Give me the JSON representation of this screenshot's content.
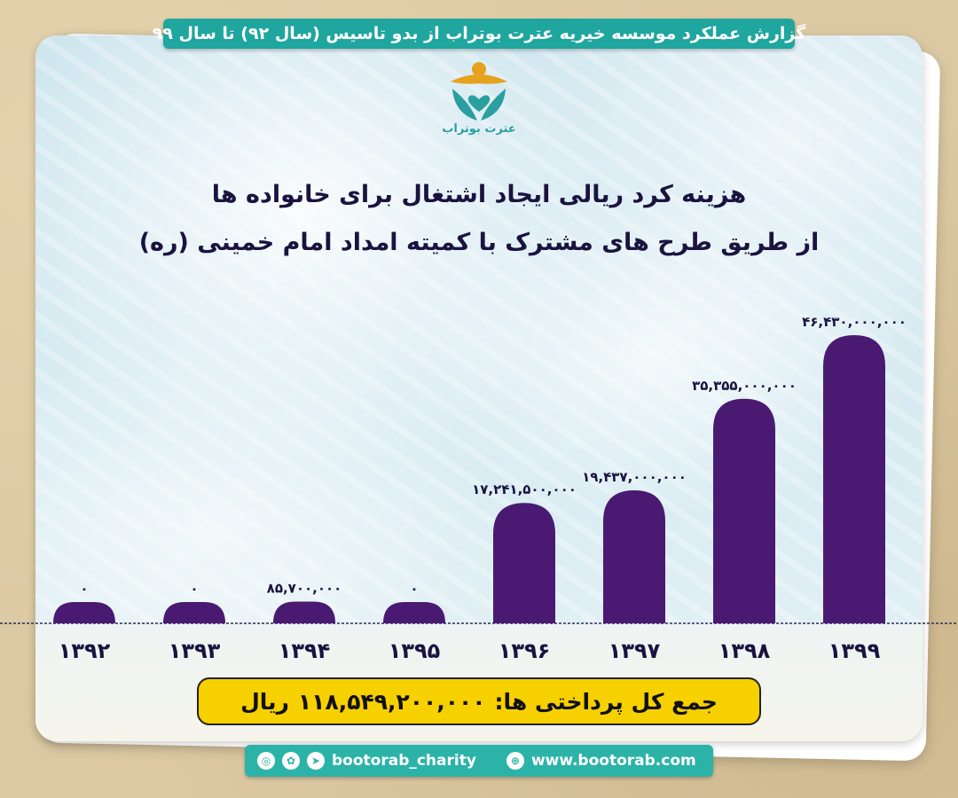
{
  "header": {
    "banner_text": "گزارش عملکرد موسسه خیریه عترت بوتراب از بدو تاسیس (سال ۹۲) تا سال ۹۹"
  },
  "logo": {
    "text": "عترت بوتراب",
    "colors": {
      "teal": "#2a9fa0",
      "gold": "#e6a21e"
    }
  },
  "title": {
    "line1": "هزینه کرد ریالی ایجاد اشتغال برای خانواده ها",
    "line2": "از طریق طرح های مشترک با کمیته امداد امام خمینی (ره)"
  },
  "chart_data": {
    "type": "bar",
    "categories": [
      "۱۳۹۲",
      "۱۳۹۳",
      "۱۳۹۴",
      "۱۳۹۵",
      "۱۳۹۶",
      "۱۳۹۷",
      "۱۳۹۸",
      "۱۳۹۹"
    ],
    "values": [
      0,
      0,
      85700000,
      0,
      17241500000,
      19437000000,
      35355000000,
      46430000000
    ],
    "value_labels": [
      "۰",
      "۰",
      "۸۵,۷۰۰,۰۰۰",
      "۰",
      "۱۷,۲۴۱,۵۰۰,۰۰۰",
      "۱۹,۴۳۷,۰۰۰,۰۰۰",
      "۳۵,۳۵۵,۰۰۰,۰۰۰",
      "۴۶,۴۳۰,۰۰۰,۰۰۰"
    ],
    "ylim": [
      0,
      46430000000
    ],
    "bar_color": "#4a1a72",
    "grid": false
  },
  "total": {
    "label": "جمع کل پرداختی ها:",
    "amount": "۱۱۸,۵۴۹,۲۰۰,۰۰۰",
    "unit": "ریال"
  },
  "footer": {
    "social_handle": "bootorab_charity",
    "website": "www.bootorab.com",
    "icons": [
      "instagram-icon",
      "aparat-icon",
      "telegram-icon",
      "web-icon"
    ]
  }
}
